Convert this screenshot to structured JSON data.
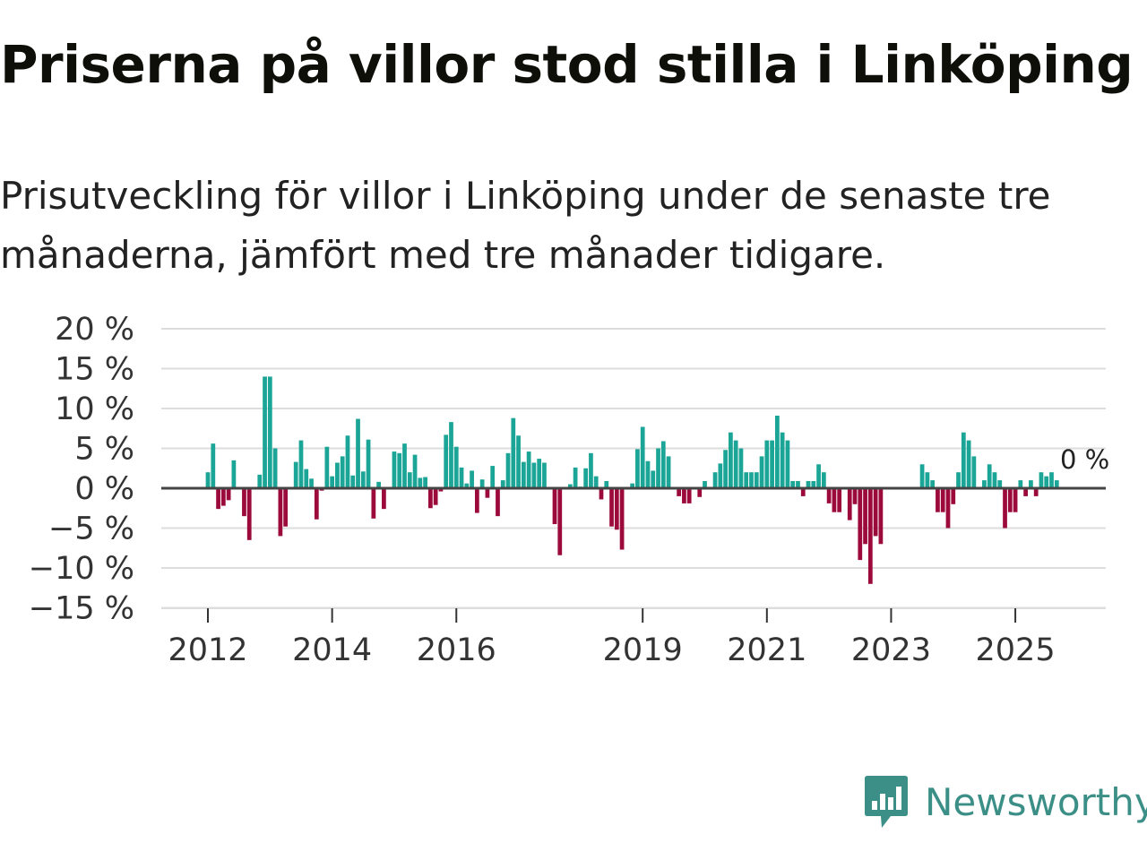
{
  "title": "Priserna på villor stod stilla i Linköping",
  "subtitle": "Prisutveckling för villor i Linköping under de senaste tre månaderna, jämfört med tre månader tidigare.",
  "brand": {
    "name": "Newsworthy",
    "color": "#3b8f87",
    "icon": "newsworthy-logo-icon"
  },
  "colors": {
    "positive": "#1aa596",
    "negative": "#9c0a3c",
    "grid": "#dddddd",
    "zero": "#444444"
  },
  "chart_data": {
    "type": "bar",
    "title": "Priserna på villor stod stilla i Linköping",
    "xlabel": "",
    "ylabel": "",
    "ylim": [
      -15,
      20
    ],
    "yticks": [
      20,
      15,
      10,
      5,
      0,
      -5,
      -10,
      -15
    ],
    "ytick_labels": [
      "20 %",
      "15 %",
      "10 %",
      "5 %",
      "0 %",
      "−5 %",
      "−10 %",
      "−15 %"
    ],
    "xticks": [
      {
        "year": 2012,
        "label": "2012"
      },
      {
        "year": 2014,
        "label": "2014"
      },
      {
        "year": 2016,
        "label": "2016"
      },
      {
        "year": 2019,
        "label": "2019"
      },
      {
        "year": 2021,
        "label": "2021"
      },
      {
        "year": 2023,
        "label": "2023"
      },
      {
        "year": 2025,
        "label": "2025"
      }
    ],
    "start": {
      "year": 2011,
      "month": 1
    },
    "values": [
      0,
      0,
      0,
      0,
      0,
      0,
      0,
      0,
      0,
      0,
      0,
      0,
      2,
      5.6,
      -2.6,
      -2.2,
      -1.5,
      3.5,
      0,
      -3.5,
      -6.5,
      0,
      1.7,
      14,
      14,
      5,
      -6,
      -4.8,
      0,
      3.3,
      6,
      2.4,
      1.2,
      -3.9,
      -0.3,
      5.2,
      1.5,
      3.2,
      4,
      6.6,
      1.6,
      8.7,
      2.1,
      6.1,
      -3.8,
      0.8,
      -2.6,
      0,
      4.6,
      4.4,
      5.6,
      2,
      4.2,
      1.3,
      1.4,
      -2.5,
      -2.1,
      -0.4,
      6.7,
      8.3,
      5.2,
      2.6,
      0.6,
      2.2,
      -3.1,
      1.1,
      -1.2,
      2.8,
      -3.5,
      1,
      4.4,
      8.8,
      6.6,
      3.3,
      4.6,
      3.2,
      3.7,
      3.2,
      0,
      -4.5,
      -8.4,
      0,
      0.5,
      2.6,
      0.2,
      2.5,
      4.4,
      1.5,
      -1.4,
      0.9,
      -4.8,
      -5.2,
      -7.7,
      0,
      0.6,
      4.9,
      7.7,
      3.4,
      2.2,
      5,
      5.9,
      4,
      0,
      -1,
      -1.9,
      -1.9,
      0,
      -1.1,
      0.9,
      0,
      2,
      3.1,
      4.8,
      7,
      6,
      5,
      2,
      2,
      2,
      4,
      6,
      6,
      9.1,
      7,
      6,
      0.9,
      0.9,
      -1,
      0.9,
      0.9,
      3,
      2,
      -1.9,
      -3,
      -3,
      0,
      -4,
      -2,
      -9,
      -7,
      -12,
      -6,
      -7,
      0,
      0,
      0,
      0,
      0,
      0,
      0,
      3,
      2,
      1,
      -3,
      -3,
      -5,
      -2,
      2,
      7,
      6,
      4,
      0,
      1,
      3,
      2,
      1,
      -5,
      -3,
      -3,
      1,
      -1,
      1,
      -1,
      2,
      1.5,
      2,
      1,
      0,
      0,
      0
    ],
    "last_value_label": "0 %"
  }
}
